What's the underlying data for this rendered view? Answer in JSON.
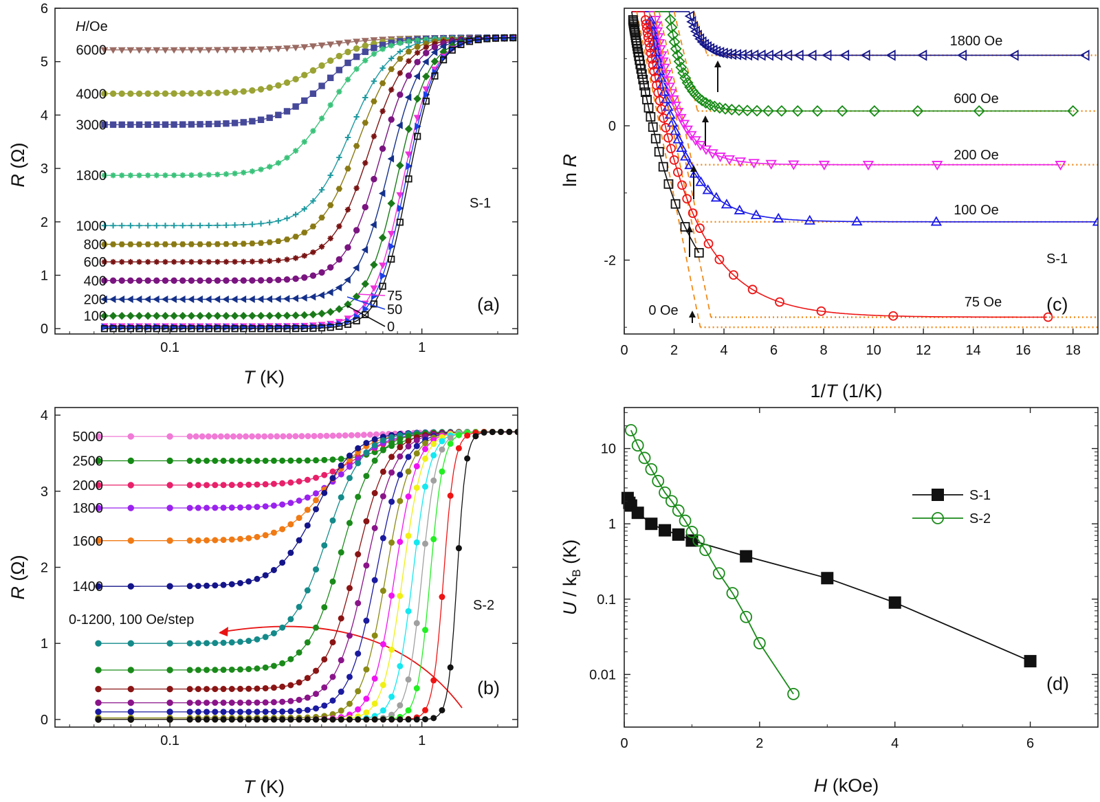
{
  "chart_data": [
    {
      "panel": "(a)",
      "type": "line",
      "xscale": "log",
      "xlim": [
        0.035,
        2.4
      ],
      "ylim": [
        -0.1,
        6
      ],
      "xticks": [
        "0.1",
        "1"
      ],
      "yticks": [
        "0",
        "1",
        "2",
        "3",
        "4",
        "5",
        "6"
      ],
      "xlabel": {
        "italic": "T",
        "rest": " (K)"
      },
      "ylabel": {
        "italic": "R",
        "rest": " (Ω)"
      },
      "sample": "S-1",
      "field_header": {
        "italic": "H",
        "rest": "/Oe"
      },
      "series": [
        {
          "name": "6000",
          "color": "#9a6a62",
          "marker": "tri-down",
          "low": 5.22,
          "tmid": 0.45,
          "width": 1.1
        },
        {
          "name": "4000",
          "color": "#9aa334",
          "marker": "circle",
          "low": 4.4,
          "tmid": 0.4,
          "width": 1.0
        },
        {
          "name": "3000",
          "color": "#46489a",
          "marker": "square",
          "low": 3.82,
          "tmid": 0.42,
          "width": 0.95
        },
        {
          "name": "1800",
          "color": "#3ac27a",
          "marker": "star",
          "low": 2.87,
          "tmid": 0.43,
          "width": 0.9
        },
        {
          "name": "1000",
          "color": "#1e9aa0",
          "marker": "plus",
          "low": 1.93,
          "tmid": 0.52,
          "width": 0.8
        },
        {
          "name": "800",
          "color": "#8a7a14",
          "marker": "hexagon",
          "low": 1.58,
          "tmid": 0.56,
          "width": 0.78
        },
        {
          "name": "600",
          "color": "#7a1414",
          "marker": "star",
          "low": 1.25,
          "tmid": 0.62,
          "width": 0.74
        },
        {
          "name": "400",
          "color": "#7a1480",
          "marker": "circle",
          "low": 0.9,
          "tmid": 0.68,
          "width": 0.7
        },
        {
          "name": "200",
          "color": "#14308a",
          "marker": "tri-left",
          "low": 0.55,
          "tmid": 0.74,
          "width": 0.66
        },
        {
          "name": "100",
          "color": "#1a7a1a",
          "marker": "diamond",
          "low": 0.24,
          "tmid": 0.8,
          "width": 0.64
        },
        {
          "name": "75",
          "color": "#ee32d8",
          "marker": "tri-down",
          "low": 0.05,
          "tmid": 0.84,
          "width": 0.62
        },
        {
          "name": "50",
          "color": "#1a40e8",
          "marker": "tri-right",
          "low": 0.03,
          "tmid": 0.86,
          "width": 0.6
        },
        {
          "name": "0",
          "color": "#111111",
          "marker": "square",
          "low": 0.0,
          "tmid": 0.88,
          "width": 0.58
        }
      ],
      "rn": 5.45
    },
    {
      "panel": "(b)",
      "type": "line",
      "xscale": "log",
      "xlim": [
        0.035,
        2.4
      ],
      "ylim": [
        -0.1,
        4.1
      ],
      "xticks": [
        "0.1",
        "1"
      ],
      "yticks": [
        "0",
        "1",
        "2",
        "3",
        "4"
      ],
      "xlabel": {
        "italic": "T",
        "rest": " (K)"
      },
      "ylabel": {
        "italic": "R",
        "rest": " (Ω)"
      },
      "sample": "S-2",
      "annotation": "0-1200, 100 Oe/step",
      "series": [
        {
          "name": "5000",
          "color": "#f07ad6",
          "low": 3.72,
          "tmid": 0.7,
          "width": 1.2,
          "tmax": 1.1
        },
        {
          "name": "2500",
          "color": "#158a15",
          "low": 3.4,
          "tmid": 0.75,
          "width": 0.75
        },
        {
          "name": "2000",
          "color": "#e8206a",
          "low": 3.08,
          "tmid": 0.55,
          "width": 0.9
        },
        {
          "name": "1800",
          "color": "#9a22ee",
          "low": 2.78,
          "tmid": 0.5,
          "width": 0.85
        },
        {
          "name": "1600",
          "color": "#f07a14",
          "low": 2.35,
          "tmid": 0.42,
          "width": 0.85
        },
        {
          "name": "1400",
          "color": "#14148a",
          "low": 1.75,
          "tmid": 0.38,
          "width": 0.8
        },
        {
          "name": "1200",
          "color": "#148a8a",
          "low": 1.0,
          "tmid": 0.42,
          "width": 0.72
        },
        {
          "name": "1100",
          "color": "#1a8a1a",
          "low": 0.65,
          "tmid": 0.48,
          "width": 0.68
        },
        {
          "name": "1000",
          "color": "#8a1414",
          "low": 0.4,
          "tmid": 0.55,
          "width": 0.64
        },
        {
          "name": "900",
          "color": "#8a148a",
          "low": 0.22,
          "tmid": 0.6,
          "width": 0.6
        },
        {
          "name": "800",
          "color": "#1a1aa0",
          "low": 0.1,
          "tmid": 0.66,
          "width": 0.56
        },
        {
          "name": "700",
          "color": "#8a8a14",
          "low": 0.02,
          "tmid": 0.72,
          "width": 0.5
        },
        {
          "name": "600",
          "color": "#f014f0",
          "low": 0.0,
          "tmid": 0.78,
          "width": 0.45
        },
        {
          "name": "500",
          "color": "#f0f014",
          "low": 0.0,
          "tmid": 0.84,
          "width": 0.4
        },
        {
          "name": "400",
          "color": "#14e8f0",
          "low": 0.0,
          "tmid": 0.92,
          "width": 0.35
        },
        {
          "name": "300",
          "color": "#a0a0a0",
          "low": 0.0,
          "tmid": 1.0,
          "width": 0.3
        },
        {
          "name": "200",
          "color": "#22ee22",
          "low": 0.0,
          "tmid": 1.08,
          "width": 0.26
        },
        {
          "name": "100",
          "color": "#ee1414",
          "low": 0.0,
          "tmid": 1.22,
          "width": 0.22
        },
        {
          "name": "0",
          "color": "#111111",
          "low": 0.0,
          "tmid": 1.38,
          "width": 0.18
        }
      ],
      "rn": 3.78
    },
    {
      "panel": "(c)",
      "type": "line",
      "xlim": [
        0,
        19
      ],
      "ylim": [
        -3.1,
        1.75
      ],
      "xticks": [
        "0",
        "2",
        "4",
        "6",
        "8",
        "10",
        "12",
        "14",
        "16",
        "18"
      ],
      "yticks": [
        "-2",
        "0"
      ],
      "xlabel": {
        "pre": "1/",
        "italic": "T",
        "rest": " (1/K)"
      },
      "ylabel": {
        "pre": "ln ",
        "italic": "R"
      },
      "sample": "S-1",
      "series": [
        {
          "name": "1800 Oe",
          "color": "#14148a",
          "marker": "tri-left",
          "plateau": 1.05,
          "x_end": 18.5,
          "x_peak": 2.6,
          "lnRn": 1.7
        },
        {
          "name": "600 Oe",
          "color": "#148a14",
          "marker": "diamond",
          "plateau": 0.22,
          "x_end": 18.0,
          "x_peak": 1.8,
          "lnRn": 1.7
        },
        {
          "name": "200 Oe",
          "color": "#ee22ee",
          "marker": "tri-down",
          "plateau": -0.58,
          "x_end": 17.5,
          "x_peak": 1.2,
          "lnRn": 1.7
        },
        {
          "name": "100 Oe",
          "color": "#1a1ae8",
          "marker": "tri-up",
          "plateau": -1.43,
          "x_end": 19.0,
          "x_peak": 1.0,
          "lnRn": 1.7
        },
        {
          "name": "75 Oe",
          "color": "#ee1414",
          "marker": "circle",
          "plateau": -2.85,
          "x_end": 17.0,
          "x_peak": 0.8,
          "lnRn": 1.7
        },
        {
          "name": "0 Oe",
          "color": "#111111",
          "marker": "square",
          "plateau": -3.0,
          "x_end": 3.0,
          "x_peak": 0.3,
          "lnRn": 1.7
        }
      ],
      "fit_lines_color": "#f08a1a"
    },
    {
      "panel": "(d)",
      "type": "scatter",
      "yscale": "log",
      "xlim": [
        0,
        7
      ],
      "ylim": [
        0.002,
        35
      ],
      "xticks": [
        "0",
        "2",
        "4",
        "6"
      ],
      "yticks": [
        "0.01",
        "0.1",
        "1",
        "10"
      ],
      "xlabel": {
        "italic": "H",
        "rest": " (kOe)"
      },
      "ylabel": {
        "italic": "U",
        "rest": " / k",
        "sub": "B",
        "tail": " (K)"
      },
      "series": [
        {
          "name": "S-1",
          "color": "#111111",
          "marker": "square-filled",
          "x": [
            0.05,
            0.075,
            0.1,
            0.2,
            0.4,
            0.6,
            0.8,
            1.0,
            1.8,
            3.0,
            4.0,
            6.0
          ],
          "y": [
            2.2,
            1.9,
            1.75,
            1.4,
            1.0,
            0.82,
            0.72,
            0.6,
            0.37,
            0.19,
            0.09,
            0.015
          ]
        },
        {
          "name": "S-2",
          "color": "#1a8a1a",
          "marker": "circle-open",
          "x": [
            0.1,
            0.2,
            0.3,
            0.4,
            0.5,
            0.6,
            0.7,
            0.8,
            0.9,
            1.0,
            1.1,
            1.2,
            1.4,
            1.6,
            1.8,
            2.0,
            2.5
          ],
          "y": [
            17.5,
            11.0,
            7.5,
            5.3,
            3.7,
            2.6,
            2.0,
            1.5,
            1.1,
            0.78,
            0.6,
            0.45,
            0.22,
            0.12,
            0.058,
            0.026,
            0.0055
          ]
        }
      ],
      "legend": "right-middle"
    }
  ]
}
